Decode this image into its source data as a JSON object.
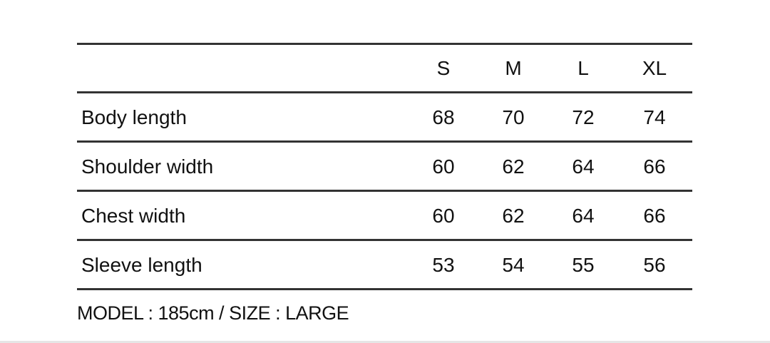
{
  "table": {
    "headers": [
      "S",
      "M",
      "L",
      "XL"
    ],
    "rows": [
      {
        "label": "Body length",
        "values": [
          "68",
          "70",
          "72",
          "74"
        ]
      },
      {
        "label": "Shoulder width",
        "values": [
          "60",
          "62",
          "64",
          "66"
        ]
      },
      {
        "label": "Chest width",
        "values": [
          "60",
          "62",
          "64",
          "66"
        ]
      },
      {
        "label": "Sleeve length",
        "values": [
          "53",
          "54",
          "55",
          "56"
        ]
      }
    ]
  },
  "note": "MODEL : 185cm / SIZE : LARGE"
}
